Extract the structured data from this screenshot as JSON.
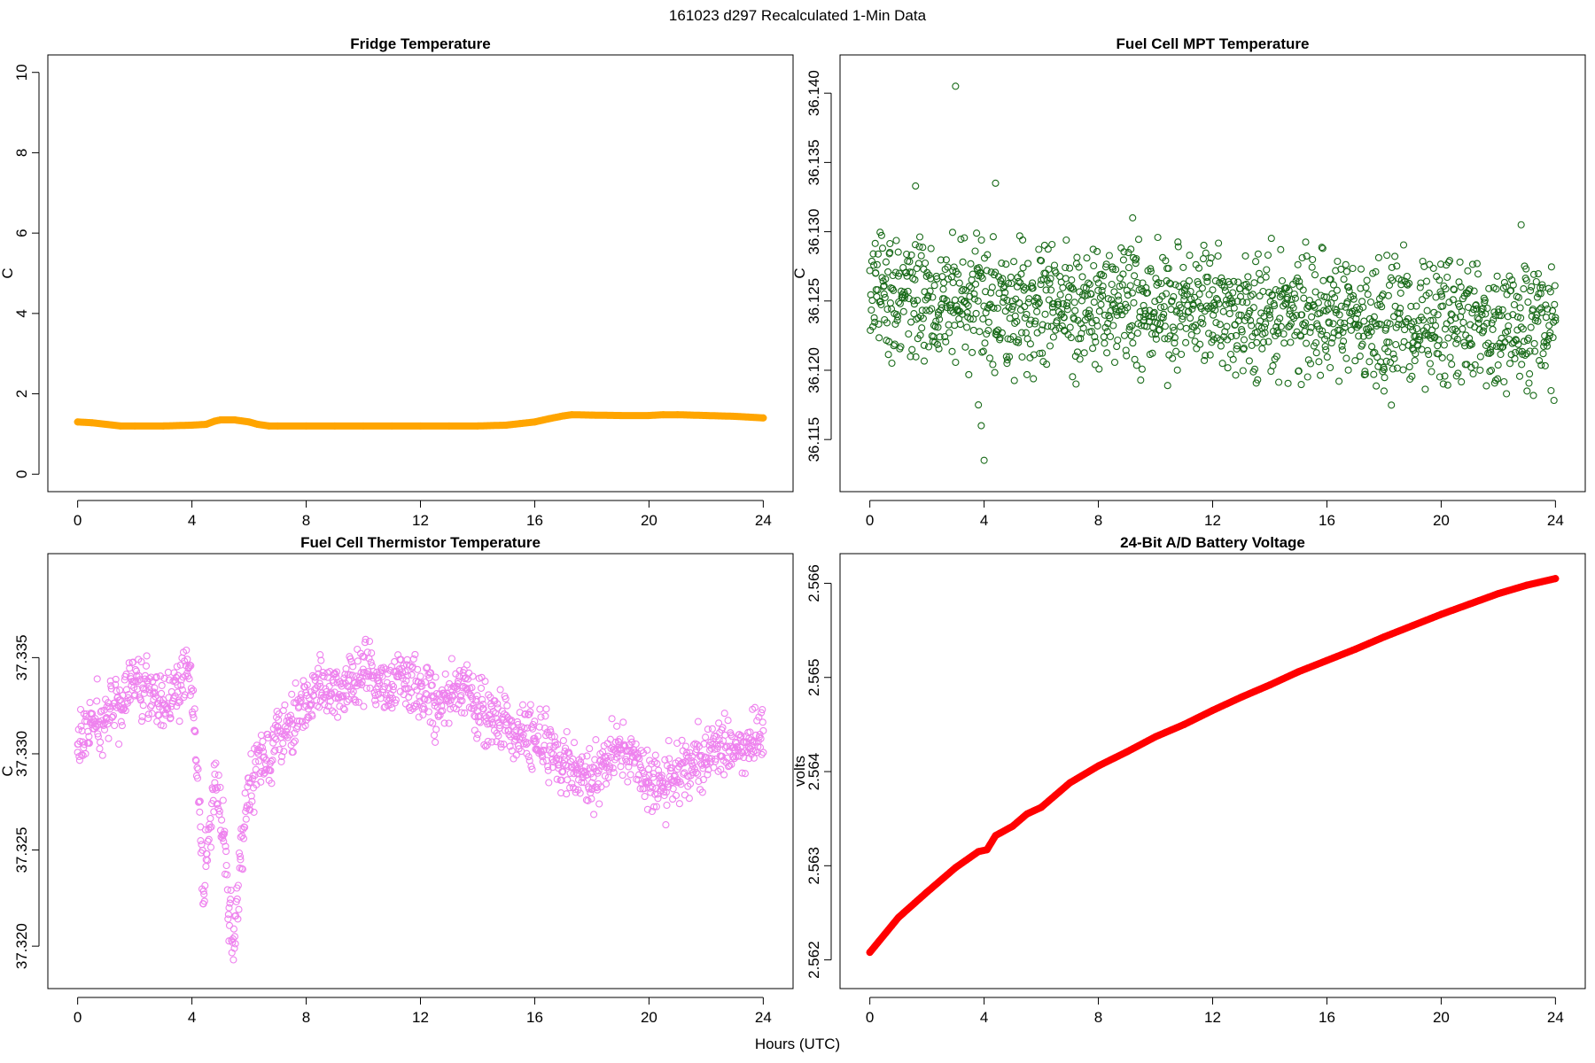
{
  "figure": {
    "suptitle": "161023   d297   Recalculated 1-Min Data",
    "xlabel": "Hours (UTC)"
  },
  "chart_data": [
    {
      "type": "line",
      "title": "Fridge Temperature",
      "ylabel": "C",
      "xlabel": "",
      "xlim": [
        0,
        24
      ],
      "ylim": [
        0,
        10
      ],
      "xticks": [
        "0",
        "4",
        "8",
        "12",
        "16",
        "20",
        "24"
      ],
      "yticks": [
        "0",
        "2",
        "4",
        "6",
        "8",
        "10"
      ],
      "grid": false,
      "series": [
        {
          "color": "#FFA500",
          "marker": "filled-circle",
          "x": [
            0,
            0.5,
            1,
            1.5,
            2,
            3,
            4,
            4.5,
            4.8,
            5,
            5.5,
            6,
            6.3,
            6.7,
            7,
            8,
            9,
            10,
            11,
            12,
            13,
            14,
            15,
            15.5,
            16,
            16.5,
            17,
            17.3,
            18,
            19,
            20,
            20.5,
            21,
            22,
            23,
            24
          ],
          "y": [
            1.3,
            1.28,
            1.24,
            1.2,
            1.2,
            1.2,
            1.22,
            1.24,
            1.32,
            1.35,
            1.35,
            1.3,
            1.24,
            1.2,
            1.2,
            1.2,
            1.2,
            1.2,
            1.2,
            1.2,
            1.2,
            1.2,
            1.22,
            1.26,
            1.3,
            1.38,
            1.45,
            1.48,
            1.47,
            1.46,
            1.46,
            1.48,
            1.48,
            1.46,
            1.44,
            1.4
          ]
        }
      ]
    },
    {
      "type": "scatter",
      "title": "Fuel Cell MPT Temperature",
      "ylabel": "C",
      "xlabel": "",
      "xlim": [
        0,
        24
      ],
      "ylim": [
        36.1125,
        36.1415
      ],
      "xticks": [
        "0",
        "4",
        "8",
        "12",
        "16",
        "20",
        "24"
      ],
      "yticks": [
        "36.115",
        "36.120",
        "36.125",
        "36.130",
        "36.135",
        "36.140"
      ],
      "grid": false,
      "series": [
        {
          "color": "#1a6b1a",
          "marker": "open-circle",
          "x": [
            0.2,
            0.5,
            1.0,
            1.6,
            2.4,
            3.0,
            3.8,
            3.9,
            4.0,
            4.4,
            5.2,
            6.0,
            6.8,
            7.7,
            8.5,
            9.2,
            10.0,
            11.0,
            12.0,
            13.1,
            14.0,
            15.1,
            16.0,
            17.0,
            18.0,
            18.1,
            19.0,
            20.0,
            21.0,
            22.0,
            22.8,
            23.0,
            23.5,
            24.0,
            0.7,
            1.9,
            2.9,
            4.8,
            6.4,
            9.6,
            12.6,
            14.7,
            16.7,
            19.5,
            21.5
          ],
          "y": [
            36.127,
            36.1255,
            36.1268,
            36.1333,
            36.124,
            36.1405,
            36.1175,
            36.116,
            36.1135,
            36.1335,
            36.122,
            36.1265,
            36.1238,
            36.1262,
            36.1247,
            36.131,
            36.1226,
            36.1251,
            36.1258,
            36.1222,
            36.1243,
            36.124,
            36.1225,
            36.1233,
            36.1185,
            36.1283,
            36.1229,
            36.1246,
            36.1218,
            36.1242,
            36.1305,
            36.1212,
            36.1245,
            36.1238,
            36.1285,
            36.1218,
            36.1272,
            36.1205,
            36.1248,
            36.1236,
            36.1262,
            36.1232,
            36.1248,
            36.1231,
            36.1252
          ]
        }
      ]
    },
    {
      "type": "scatter",
      "title": "Fuel Cell Thermistor Temperature",
      "ylabel": "C",
      "xlabel": "",
      "xlim": [
        0,
        24
      ],
      "ylim": [
        37.3187,
        37.3395
      ],
      "xticks": [
        "0",
        "4",
        "8",
        "12",
        "16",
        "20",
        "24"
      ],
      "yticks": [
        "37.320",
        "37.325",
        "37.330",
        "37.335"
      ],
      "grid": false,
      "series": [
        {
          "color": "#ee82ee",
          "marker": "open-circle",
          "x": [
            0,
            0.5,
            1.0,
            1.5,
            2.0,
            2.5,
            3.0,
            3.5,
            3.9,
            4.1,
            4.3,
            4.4,
            4.5,
            4.8,
            5.1,
            5.3,
            5.5,
            5.7,
            6.0,
            6.5,
            7.0,
            7.5,
            8.0,
            8.5,
            9.0,
            9.5,
            10.0,
            10.5,
            11.0,
            11.5,
            12.0,
            12.5,
            13.0,
            13.5,
            14.0,
            14.5,
            15.0,
            15.5,
            16.0,
            16.5,
            17.0,
            17.5,
            18.0,
            18.5,
            19.0,
            19.5,
            20.0,
            20.5,
            21.0,
            21.5,
            22.0,
            22.5,
            23.0,
            23.5,
            24.0
          ],
          "y": [
            37.3305,
            37.3315,
            37.3318,
            37.3328,
            37.3338,
            37.3335,
            37.3328,
            37.3332,
            37.3345,
            37.3312,
            37.3262,
            37.3222,
            37.3245,
            37.3285,
            37.3258,
            37.322,
            37.3205,
            37.3245,
            37.3285,
            37.3298,
            37.3312,
            37.3318,
            37.3325,
            37.3335,
            37.3332,
            37.3335,
            37.3342,
            37.3338,
            37.3336,
            37.3338,
            37.3335,
            37.3325,
            37.333,
            37.3335,
            37.3322,
            37.3318,
            37.3315,
            37.3312,
            37.3308,
            37.3302,
            37.3295,
            37.329,
            37.3285,
            37.3298,
            37.3302,
            37.3296,
            37.3285,
            37.3282,
            37.3292,
            37.3295,
            37.3298,
            37.3305,
            37.3302,
            37.3308,
            37.3312
          ]
        }
      ]
    },
    {
      "type": "line",
      "title": "24-Bit A/D Battery Voltage",
      "ylabel": "volts",
      "xlabel": "",
      "xlim": [
        0,
        24
      ],
      "ylim": [
        2.56188,
        2.56613
      ],
      "xticks": [
        "0",
        "4",
        "8",
        "12",
        "16",
        "20",
        "24"
      ],
      "yticks": [
        "2.562",
        "2.563",
        "2.564",
        "2.565",
        "2.566"
      ],
      "grid": false,
      "series": [
        {
          "color": "#ff0000",
          "marker": "filled-circle",
          "x": [
            0,
            1,
            2,
            3,
            3.8,
            4.1,
            4.4,
            5.0,
            5.5,
            6.0,
            6.5,
            7,
            8,
            9,
            10,
            11,
            12,
            13,
            14,
            15,
            16,
            17,
            18,
            19,
            20,
            21,
            22,
            23,
            24
          ],
          "y": [
            2.56208,
            2.56245,
            2.56272,
            2.56298,
            2.56315,
            2.56317,
            2.56332,
            2.56342,
            2.56355,
            2.56362,
            2.56375,
            2.56388,
            2.56406,
            2.56421,
            2.56437,
            2.5645,
            2.56465,
            2.56479,
            2.56492,
            2.56506,
            2.56518,
            2.5653,
            2.56543,
            2.56555,
            2.56567,
            2.56578,
            2.56589,
            2.56598,
            2.56605
          ]
        }
      ]
    }
  ]
}
